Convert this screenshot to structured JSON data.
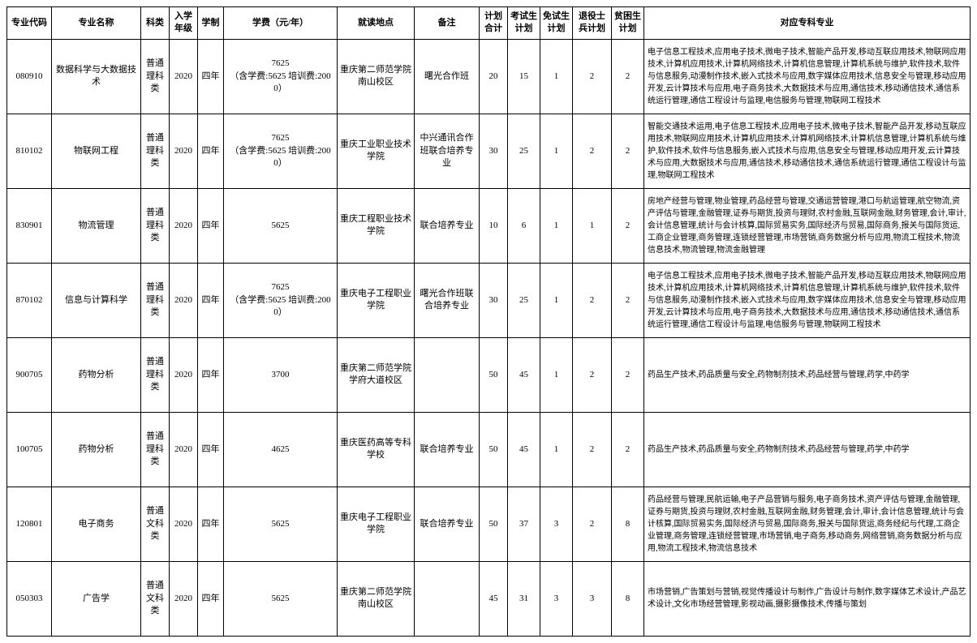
{
  "headers": [
    "专业代码",
    "专业名称",
    "科类",
    "入学年级",
    "学制",
    "学费（元/年）",
    "就读地点",
    "备注",
    "计划合计",
    "考试生计划",
    "免试生计划",
    "退役士兵计划",
    "贫困生计划",
    "对应专科专业"
  ],
  "rows": [
    {
      "code": "080910",
      "name": "数据科学与大数据技术",
      "category": "普通理科类",
      "year": "2020",
      "duration": "四年",
      "fee": "7625\n（含学费:5625 培训费:2000）",
      "location": "重庆第二师范学院南山校区",
      "note": "曙光合作班",
      "total": "20",
      "exam": "15",
      "exempt": "1",
      "veteran": "2",
      "poor": "2",
      "majors": "电子信息工程技术,应用电子技术,微电子技术,智能产品开发,移动互联应用技术,物联网应用技术,计算机应用技术,计算机网络技术,计算机信息管理,计算机系统与维护,软件技术,软件与信息服务,动漫制作技术,嵌入式技术与应用,数字媒体应用技术,信息安全与管理,移动应用开发,云计算技术与应用,电子商务技术,大数据技术与应用,通信技术,移动通信技术,通信系统运行管理,通信工程设计与监理,电信服务与管理,物联网工程技术"
    },
    {
      "code": "810102",
      "name": "物联网工程",
      "category": "普通理科类",
      "year": "2020",
      "duration": "四年",
      "fee": "7625\n（含学费:5625 培训费:2000）",
      "location": "重庆工业职业技术学院",
      "note": "中兴通讯合作班联合培养专业",
      "total": "30",
      "exam": "25",
      "exempt": "1",
      "veteran": "2",
      "poor": "2",
      "majors": "智能交通技术运用,电子信息工程技术,应用电子技术,微电子技术,智能产品开发,移动互联应用技术,物联网应用技术,计算机应用技术,计算机网络技术,计算机信息管理,计算机系统与维护,软件技术,软件与信息服务,嵌入式技术与应用,信息安全与管理,移动应用开发,云计算技术与应用,大数据技术与应用,通信技术,移动通信技术,通信系统运行管理,通信工程设计与监理,物联网工程技术"
    },
    {
      "code": "830901",
      "name": "物流管理",
      "category": "普通理科类",
      "year": "2020",
      "duration": "四年",
      "fee": "5625",
      "location": "重庆工程职业技术学院",
      "note": "联合培养专业",
      "total": "10",
      "exam": "6",
      "exempt": "1",
      "veteran": "1",
      "poor": "2",
      "majors": "房地产经营与管理,物业管理,药品经营与管理,交通运营管理,港口与航运管理,航空物流,资产评估与管理,金融管理,证券与期货,投资与理财,农村金融,互联网金融,财务管理,会计,审计,会计信息管理,统计与会计核算,国际贸易实务,国际经济与贸易,国际商务,报关与国际货运,工商企业管理,商务管理,连锁经营管理,市场营销,商务数据分析与应用,物流工程技术,物流信息技术,物流管理,物流金融管理"
    },
    {
      "code": "870102",
      "name": "信息与计算科学",
      "category": "普通理科类",
      "year": "2020",
      "duration": "四年",
      "fee": "7625\n（含学费:5625 培训费:2000）",
      "location": "重庆电子工程职业学院",
      "note": "曙光合作班联合培养专业",
      "total": "30",
      "exam": "25",
      "exempt": "1",
      "veteran": "2",
      "poor": "2",
      "majors": "电子信息工程技术,应用电子技术,微电子技术,智能产品开发,移动互联应用技术,物联网应用技术,计算机应用技术,计算机网络技术,计算机信息管理,计算机系统与维护,软件技术,软件与信息服务,动漫制作技术,嵌入式技术与应用,数字媒体应用技术,信息安全与管理,移动应用开发,云计算技术与应用,电子商务技术,大数据技术与应用,通信技术,移动通信技术,通信系统运行管理,通信工程设计与监理,电信服务与管理,物联网工程技术"
    },
    {
      "code": "900705",
      "name": "药物分析",
      "category": "普通理科类",
      "year": "2020",
      "duration": "四年",
      "fee": "3700",
      "location": "重庆第二师范学院学府大道校区",
      "note": "",
      "total": "50",
      "exam": "45",
      "exempt": "1",
      "veteran": "2",
      "poor": "2",
      "majors": "药品生产技术,药品质量与安全,药物制剂技术,药品经营与管理,药学,中药学"
    },
    {
      "code": "100705",
      "name": "药物分析",
      "category": "普通理科类",
      "year": "2020",
      "duration": "四年",
      "fee": "4625",
      "location": "重庆医药高等专科学校",
      "note": "联合培养专业",
      "total": "50",
      "exam": "45",
      "exempt": "1",
      "veteran": "2",
      "poor": "2",
      "majors": "药品生产技术,药品质量与安全,药物制剂技术,药品经营与管理,药学,中药学"
    },
    {
      "code": "120801",
      "name": "电子商务",
      "category": "普通文科类",
      "year": "2020",
      "duration": "四年",
      "fee": "5625",
      "location": "重庆电子工程职业学院",
      "note": "联合培养专业",
      "total": "50",
      "exam": "37",
      "exempt": "3",
      "veteran": "2",
      "poor": "8",
      "majors": "药品经营与管理,民航运输,电子产品营销与服务,电子商务技术,资产评估与管理,金融管理,证券与期货,投资与理财,农村金融,互联网金融,财务管理,会计,审计,会计信息管理,统计与会计核算,国际贸易实务,国际经济与贸易,国际商务,报关与国际货运,商务经纪与代理,工商企业管理,商务管理,连锁经营管理,市场营销,电子商务,移动商务,网络营销,商务数据分析与应用,物流工程技术,物流信息技术"
    },
    {
      "code": "050303",
      "name": "广告学",
      "category": "普通文科类",
      "year": "2020",
      "duration": "四年",
      "fee": "5625",
      "location": "重庆第二师范学院南山校区",
      "note": "",
      "total": "45",
      "exam": "31",
      "exempt": "3",
      "veteran": "3",
      "poor": "8",
      "majors": "市场营销,广告策划与营销,视觉传播设计与制作,广告设计与制作,数字媒体艺术设计,产品艺术设计,文化市场经营管理,影视动画,摄影摄像技术,传播与策划"
    }
  ]
}
